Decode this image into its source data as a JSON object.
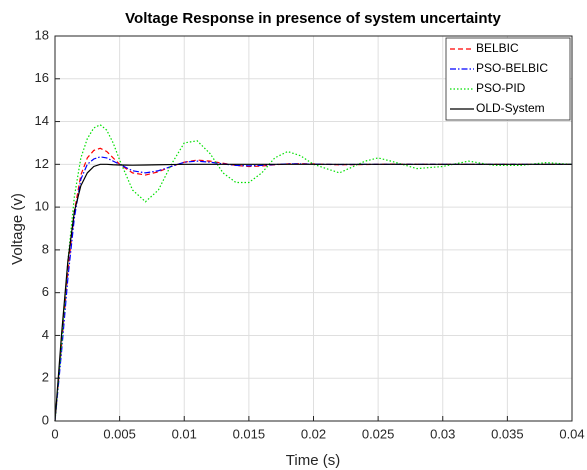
{
  "chart_data": {
    "type": "line",
    "title": "Voltage Response in presence of system uncertainty",
    "xlabel": "Time (s)",
    "ylabel": "Voltage (v)",
    "x": [
      0,
      0.0005,
      0.001,
      0.0015,
      0.002,
      0.0025,
      0.003,
      0.0035,
      0.004,
      0.0045,
      0.005,
      0.006,
      0.007,
      0.008,
      0.009,
      0.01,
      0.011,
      0.012,
      0.013,
      0.014,
      0.015,
      0.016,
      0.017,
      0.018,
      0.019,
      0.02,
      0.022,
      0.024,
      0.025,
      0.026,
      0.028,
      0.03,
      0.032,
      0.034,
      0.036,
      0.038,
      0.04
    ],
    "series": [
      {
        "name": "BELBIC",
        "color": "#ff0000",
        "dash": "dashed",
        "values": [
          0,
          3.5,
          7,
          9.8,
          11.5,
          12.3,
          12.65,
          12.75,
          12.6,
          12.3,
          12,
          11.6,
          11.5,
          11.65,
          11.9,
          12.1,
          12.2,
          12.15,
          12.05,
          11.95,
          11.9,
          11.92,
          11.98,
          12.02,
          12.03,
          12.02,
          11.98,
          11.99,
          12,
          12.01,
          12,
          12,
          12,
          12,
          12,
          12,
          12
        ]
      },
      {
        "name": "PSO-BELBIC",
        "color": "#0000ff",
        "dash": "dashdot",
        "values": [
          0,
          3.2,
          6.7,
          9.5,
          11.3,
          12.0,
          12.25,
          12.35,
          12.3,
          12.15,
          12,
          11.7,
          11.6,
          11.7,
          11.9,
          12.1,
          12.15,
          12.1,
          12.02,
          11.95,
          11.93,
          11.95,
          11.99,
          12.02,
          12.02,
          12.01,
          11.99,
          12,
          12,
          12,
          12,
          12,
          12,
          12,
          12,
          12,
          12
        ]
      },
      {
        "name": "PSO-PID",
        "color": "#00e000",
        "dash": "dotted",
        "values": [
          0,
          3.5,
          7.5,
          10.5,
          12.3,
          13.2,
          13.7,
          13.85,
          13.6,
          13.0,
          12.2,
          10.8,
          10.25,
          10.8,
          12.0,
          13.0,
          13.1,
          12.5,
          11.6,
          11.15,
          11.15,
          11.6,
          12.3,
          12.6,
          12.4,
          12.0,
          11.6,
          12.15,
          12.3,
          12.15,
          11.8,
          11.9,
          12.15,
          11.95,
          11.95,
          12.08,
          12.0
        ]
      },
      {
        "name": "OLD-System",
        "color": "#000000",
        "dash": "solid",
        "values": [
          0,
          4,
          7.5,
          9.8,
          11,
          11.6,
          11.9,
          12.0,
          12.0,
          11.98,
          11.97,
          11.96,
          11.97,
          11.98,
          11.99,
          12,
          12,
          12,
          12,
          12,
          12,
          12,
          12,
          12,
          12,
          12,
          12,
          12,
          12,
          12,
          12,
          12,
          12,
          12,
          12,
          12,
          12
        ]
      }
    ],
    "xlim": [
      0,
      0.04
    ],
    "xticks": [
      0,
      0.005,
      0.01,
      0.015,
      0.02,
      0.025,
      0.03,
      0.035,
      0.04
    ],
    "ylim": [
      0,
      18
    ],
    "yticks": [
      0,
      2,
      4,
      6,
      8,
      10,
      12,
      14,
      16,
      18
    ],
    "grid": true,
    "legend": "upper right"
  }
}
